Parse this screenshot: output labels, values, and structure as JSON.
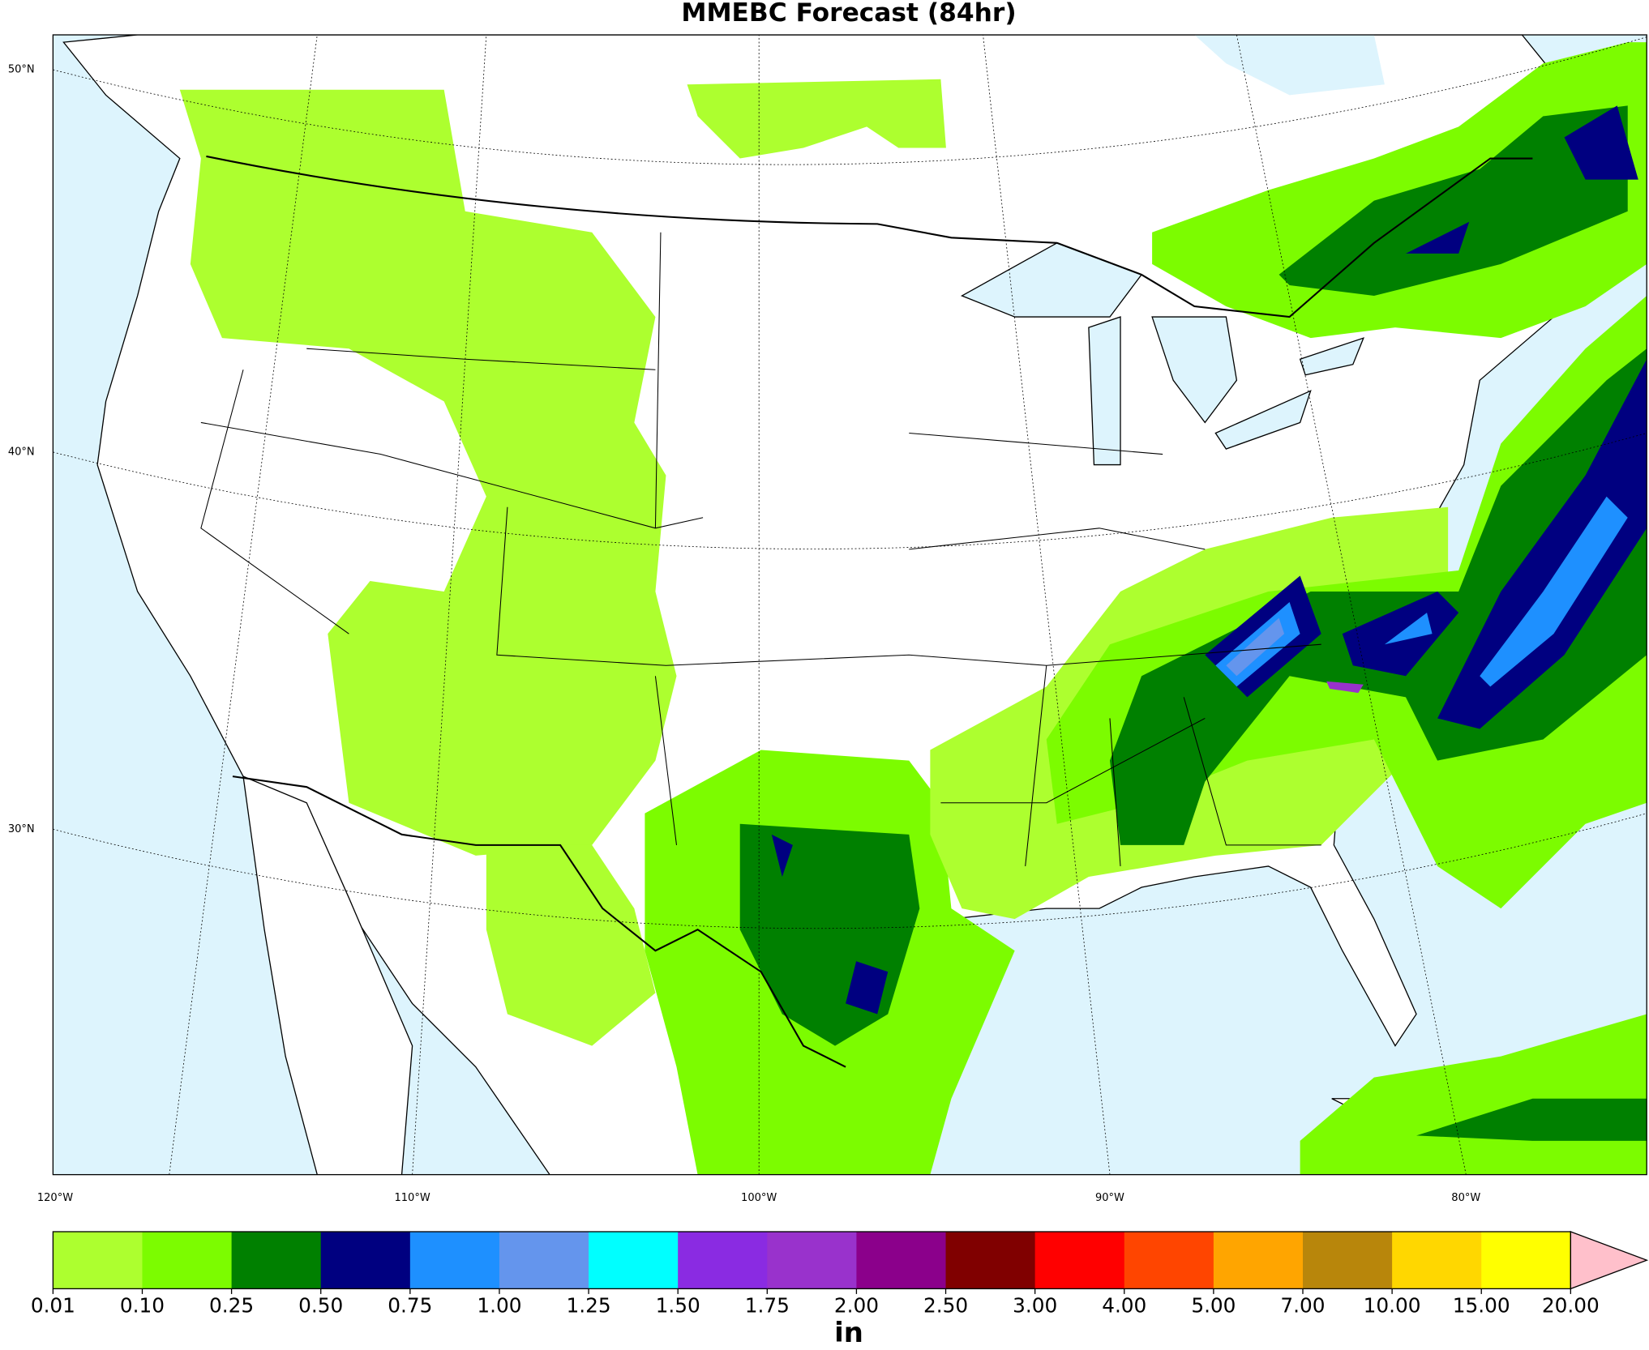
{
  "map": {
    "title": "MMEBC Forecast (84hr)",
    "lat_labels": [
      "50°N",
      "40°N",
      "30°N"
    ],
    "lon_labels": [
      "120°W",
      "110°W",
      "100°W",
      "90°W",
      "80°W"
    ]
  },
  "colorbar": {
    "label": "in",
    "ticks": [
      {
        "value": 0.01,
        "label": "0.01"
      },
      {
        "value": 0.1,
        "label": "0.10"
      },
      {
        "value": 0.25,
        "label": "0.25"
      },
      {
        "value": 0.5,
        "label": "0.50"
      },
      {
        "value": 0.75,
        "label": "0.75"
      },
      {
        "value": 1,
        "label": "1.00"
      },
      {
        "value": 1.25,
        "label": "1.25"
      },
      {
        "value": 1.5,
        "label": "1.50"
      },
      {
        "value": 1.75,
        "label": "1.75"
      },
      {
        "value": 2,
        "label": "2.00"
      },
      {
        "value": 2.5,
        "label": "2.50"
      },
      {
        "value": 3,
        "label": "3.00"
      },
      {
        "value": 4,
        "label": "4.00"
      },
      {
        "value": 5,
        "label": "5.00"
      },
      {
        "value": 7,
        "label": "7.00"
      },
      {
        "value": 10,
        "label": "10.00"
      },
      {
        "value": 15,
        "label": "15.00"
      },
      {
        "value": 20,
        "label": "20.00"
      }
    ],
    "colors": [
      "#adff2f",
      "#7cfc00",
      "#008000",
      "#000080",
      "#1e90ff",
      "#6495ed",
      "#00ffff",
      "#8a2be2",
      "#9932cc",
      "#8b008b",
      "#800000",
      "#ff0000",
      "#ff4500",
      "#ffa500",
      "#b8860b",
      "#ffd700",
      "#ffff00"
    ],
    "extend_color": "#ffc0cb"
  }
}
